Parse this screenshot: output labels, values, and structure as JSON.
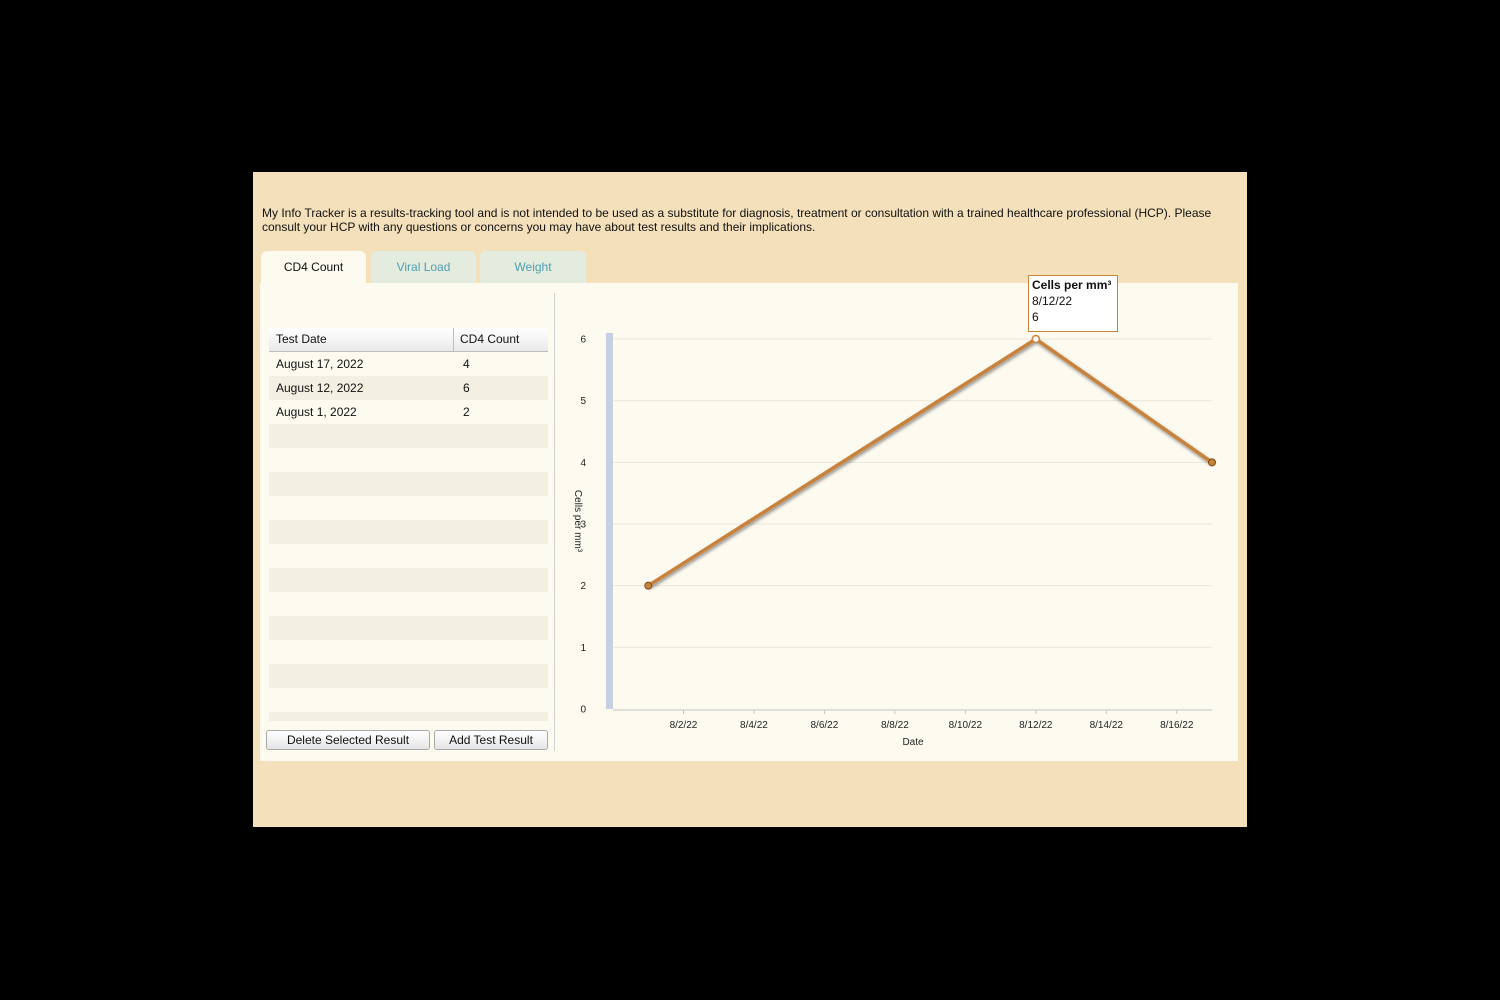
{
  "disclaimer": "My Info Tracker is a results-tracking tool and is not intended to be used as a substitute for diagnosis, treatment or consultation with a trained healthcare professional (HCP). Please consult your HCP with any questions or concerns you may have about test results and their implications.",
  "tabs": [
    {
      "label": "CD4 Count",
      "active": true
    },
    {
      "label": "Viral Load",
      "active": false
    },
    {
      "label": "Weight",
      "active": false
    }
  ],
  "table": {
    "headers": [
      "Test Date",
      "CD4 Count"
    ],
    "rows": [
      [
        "August 17, 2022",
        "4"
      ],
      [
        "August 12, 2022",
        "6"
      ],
      [
        "August 1, 2022",
        "2"
      ]
    ]
  },
  "buttons": {
    "delete": "Delete Selected Result",
    "add": "Add Test Result"
  },
  "tooltip": {
    "title": "Cells per mm³",
    "date": "8/12/22",
    "value": "6"
  },
  "colors": {
    "line": "#c8823a",
    "app_bg": "#f4e0bb",
    "panel_bg": "#fdfaf0",
    "tab_inactive_text": "#4f9fb0"
  },
  "chart_data": {
    "type": "line",
    "xlabel": "Date",
    "ylabel": "Cells per mm³",
    "ylim": [
      0,
      6
    ],
    "yticks": [
      "0",
      "1",
      "2",
      "3",
      "4",
      "5",
      "6"
    ],
    "xticks": [
      "8/2/22",
      "8/4/22",
      "8/6/22",
      "8/8/22",
      "8/10/22",
      "8/12/22",
      "8/14/22",
      "8/16/22"
    ],
    "series": [
      {
        "x": [
          "2022-08-01",
          "2022-08-12",
          "2022-08-17"
        ],
        "values": [
          2,
          6,
          4
        ]
      }
    ],
    "grid": true,
    "highlighted_point": "2022-08-12"
  }
}
